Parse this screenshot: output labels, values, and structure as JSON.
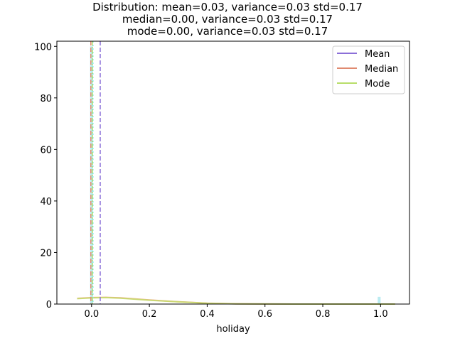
{
  "chart_data": {
    "type": "line",
    "title_lines": [
      "Distribution: mean=0.03, variance=0.03 std=0.17",
      "median=0.00, variance=0.03 std=0.17",
      "mode=0.00, variance=0.03 std=0.17"
    ],
    "xlabel": "holiday",
    "ylabel": "",
    "xlim": [
      -0.12,
      1.1
    ],
    "ylim": [
      0,
      102
    ],
    "x_ticks": [
      0.0,
      0.2,
      0.4,
      0.6,
      0.8,
      1.0
    ],
    "x_tick_labels": [
      "0.0",
      "0.2",
      "0.4",
      "0.6",
      "0.8",
      "1.0"
    ],
    "y_ticks": [
      0,
      20,
      40,
      60,
      80,
      100
    ],
    "y_tick_labels": [
      "0",
      "20",
      "40",
      "60",
      "80",
      "100"
    ],
    "grid": false,
    "legend_position": "top-right",
    "histogram": {
      "color": "#aee8ee",
      "bars": [
        {
          "x0": -0.005,
          "x1": 0.005,
          "y": 100
        },
        {
          "x0": 0.99,
          "x1": 1.0,
          "y": 2.8
        }
      ]
    },
    "density_curves": [
      {
        "name": "kde-1",
        "color": "#f0a07a",
        "x": [
          -0.05,
          0.0,
          0.05,
          0.1,
          0.15,
          0.2,
          0.3,
          0.4,
          0.5,
          0.6,
          0.7,
          0.8,
          0.9,
          1.0,
          1.05
        ],
        "y": [
          2.2,
          2.5,
          2.6,
          2.4,
          2.0,
          1.6,
          0.9,
          0.35,
          0.1,
          0.02,
          0,
          0,
          0,
          0,
          0
        ]
      },
      {
        "name": "kde-2",
        "color": "#c5dc6e",
        "x": [
          -0.05,
          0.0,
          0.05,
          0.1,
          0.15,
          0.2,
          0.3,
          0.4,
          0.5,
          0.6,
          0.7,
          0.8,
          0.9,
          1.0,
          1.05
        ],
        "y": [
          2.1,
          2.4,
          2.5,
          2.3,
          1.9,
          1.5,
          0.85,
          0.3,
          0.08,
          0.02,
          0,
          0,
          0,
          0,
          0
        ]
      }
    ],
    "series": [
      {
        "name": "Mean",
        "value": 0.03,
        "color": "#8b6fd8"
      },
      {
        "name": "Median",
        "value": 0.0,
        "color": "#e08a70"
      },
      {
        "name": "Mode",
        "value": 0.0,
        "color": "#b8de6a"
      }
    ],
    "extra_vline": {
      "value": 0.0,
      "color": "#7ee8e0"
    }
  }
}
